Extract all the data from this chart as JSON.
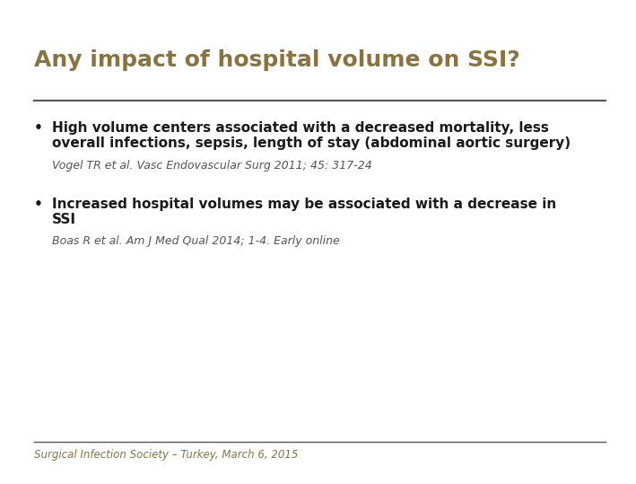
{
  "title": "Any impact of hospital volume on SSI?",
  "title_color": "#8B7340",
  "title_fontsize": 18,
  "background_color": "#FFFFFF",
  "separator_color": "#555555",
  "bullet1_line1": "High volume centers associated with a decreased mortality, less",
  "bullet1_line2": "overall infections, sepsis, length of stay (abdominal aortic surgery)",
  "bullet1_ref": "Vogel TR et al. Vasc Endovascular Surg 2011; 45: 317-24",
  "bullet2_line1": "Increased hospital volumes may be associated with a decrease in",
  "bullet2_line2": "SSI",
  "bullet2_ref": "Boas R et al. Am J Med Qual 2014; 1-4. Early online",
  "footer_text": "Surgical Infection Society – Turkey, March 6, 2015",
  "footer_color": "#8B7340",
  "bullet_color": "#1A1A1A",
  "ref_color": "#555555",
  "bullet_fontsize": 11,
  "ref_fontsize": 9,
  "footer_fontsize": 8.5
}
